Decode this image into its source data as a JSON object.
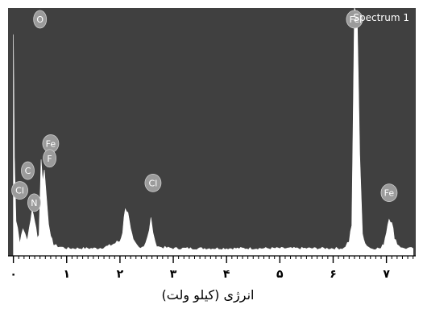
{
  "chart_data": {
    "type": "line",
    "title": "Spectrum 1",
    "xlabel": "انرژی (کیلو ولت)",
    "ylabel": "",
    "xlim": [
      -0.1,
      7.55
    ],
    "ylim": [
      0,
      100
    ],
    "x_ticks": [
      {
        "value": 0,
        "label": "۰"
      },
      {
        "value": 1,
        "label": "۱"
      },
      {
        "value": 2,
        "label": "۲"
      },
      {
        "value": 3,
        "label": "۳"
      },
      {
        "value": 4,
        "label": "۴"
      },
      {
        "value": 5,
        "label": "۵"
      },
      {
        "value": 6,
        "label": "۶"
      },
      {
        "value": 7,
        "label": "۷"
      }
    ],
    "series": [
      {
        "x": [
          0.0,
          0.02,
          0.05,
          0.08,
          0.12,
          0.18,
          0.22,
          0.26,
          0.3,
          0.35,
          0.4,
          0.45,
          0.48,
          0.52,
          0.55,
          0.58,
          0.62,
          0.66,
          0.7,
          0.75,
          0.8,
          0.9,
          1.0,
          1.2,
          1.4,
          1.6,
          1.8,
          2.0,
          2.05,
          2.1,
          2.15,
          2.2,
          2.25,
          2.35,
          2.45,
          2.55,
          2.58,
          2.62,
          2.66,
          2.75,
          3.0,
          3.5,
          4.0,
          4.5,
          5.0,
          5.5,
          6.0,
          6.2,
          6.3,
          6.35,
          6.4,
          6.45,
          6.5,
          6.55,
          6.6,
          6.7,
          6.8,
          6.9,
          6.95,
          7.0,
          7.05,
          7.1,
          7.15,
          7.2,
          7.3,
          7.4,
          7.5
        ],
        "y": [
          90,
          40,
          15,
          12,
          5,
          12,
          8,
          6,
          12,
          18,
          15,
          8,
          8,
          40,
          30,
          35,
          25,
          14,
          7,
          5,
          4,
          3.5,
          3,
          3,
          3,
          3,
          4,
          6,
          10,
          20,
          17,
          10,
          6,
          3.5,
          4,
          10,
          15,
          10,
          5,
          3.5,
          3,
          3,
          3,
          3,
          3,
          3,
          3,
          3,
          6,
          12,
          100,
          100,
          40,
          10,
          5,
          3,
          3,
          3,
          5,
          10,
          16,
          13,
          8,
          5,
          3,
          3,
          3
        ]
      }
    ],
    "peak_labels": [
      {
        "label": "O",
        "x": 0.5,
        "y": 100
      },
      {
        "label": "Fe",
        "x": 0.7,
        "y": 43
      },
      {
        "label": "F",
        "x": 0.68,
        "y": 37
      },
      {
        "label": "C",
        "x": 0.27,
        "y": 32
      },
      {
        "label": "Cl",
        "x": 0.12,
        "y": 24
      },
      {
        "label": "N",
        "x": 0.39,
        "y": 19
      },
      {
        "label": "Cl",
        "x": 2.62,
        "y": 27
      },
      {
        "label": "Fe",
        "x": 6.4,
        "y": 100
      },
      {
        "label": "Fe",
        "x": 7.05,
        "y": 23
      }
    ],
    "colors": {
      "background": "#404040",
      "spectrum": "#ffffff",
      "label_fill": "#9b9b9b",
      "label_text": "#ffffff",
      "axis": "#000000"
    }
  }
}
